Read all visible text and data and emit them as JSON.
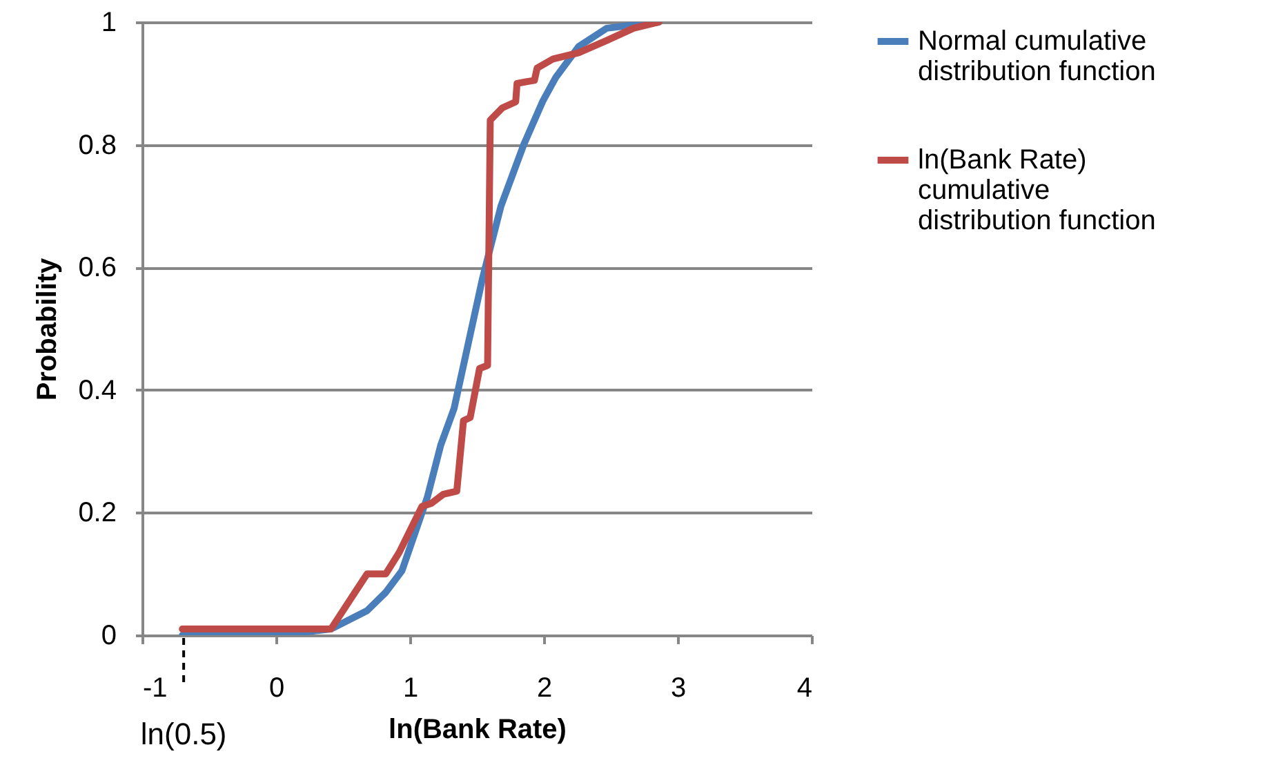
{
  "chart_data": {
    "type": "line",
    "xlabel": "ln(Bank Rate)",
    "ylabel": "Probability",
    "xlim": [
      -1,
      4
    ],
    "ylim": [
      0,
      1
    ],
    "xticks": [
      -1,
      0,
      1,
      2,
      3,
      4
    ],
    "yticks": [
      0,
      0.2,
      0.4,
      0.6,
      0.8,
      1
    ],
    "grid": "y",
    "legend": "right",
    "annotations": [
      {
        "text": "ln(0.5)",
        "x": -0.69
      }
    ],
    "series": [
      {
        "name": "Normal cumulative distribution function",
        "color": "#4a7ebb",
        "x": [
          -0.7,
          0.0,
          0.41,
          0.68,
          0.82,
          0.94,
          1.13,
          1.23,
          1.33,
          1.44,
          1.54,
          1.68,
          1.85,
          1.99,
          2.09,
          2.26,
          2.47,
          2.86
        ],
        "values": [
          0.0,
          0.0,
          0.01,
          0.04,
          0.07,
          0.105,
          0.225,
          0.31,
          0.37,
          0.48,
          0.58,
          0.7,
          0.8,
          0.87,
          0.91,
          0.96,
          0.99,
          1.0
        ]
      },
      {
        "name": "ln(Bank Rate) cumulative distribution function",
        "color": "#be4b48",
        "x": [
          -0.7,
          0.41,
          0.68,
          0.82,
          0.92,
          1.09,
          1.16,
          1.25,
          1.35,
          1.4,
          1.45,
          1.52,
          1.58,
          1.6,
          1.69,
          1.79,
          1.8,
          1.93,
          1.95,
          2.07,
          2.26,
          2.47,
          2.67,
          2.86
        ],
        "values": [
          0.01,
          0.01,
          0.1,
          0.1,
          0.135,
          0.21,
          0.215,
          0.23,
          0.235,
          0.35,
          0.355,
          0.435,
          0.44,
          0.84,
          0.86,
          0.87,
          0.9,
          0.905,
          0.925,
          0.94,
          0.95,
          0.97,
          0.99,
          1.0
        ]
      }
    ]
  }
}
